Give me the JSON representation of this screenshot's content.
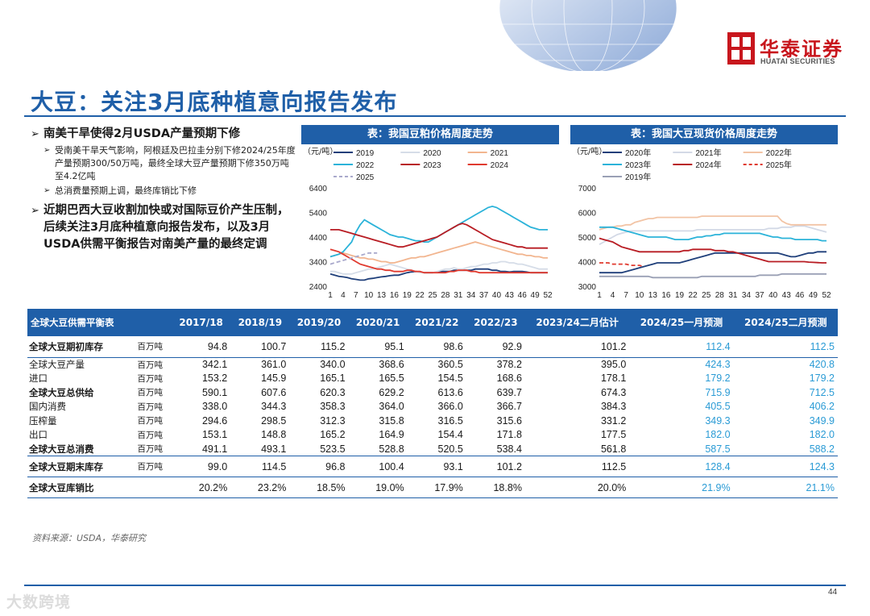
{
  "brand": {
    "name_cn": "华泰证券",
    "name_en": "HUATAI SECURITIES"
  },
  "page": {
    "title": "大豆：关注3月底种植意向报告发布",
    "number": "44",
    "source": "资料来源：USDA，华泰研究",
    "watermark": "大数跨境"
  },
  "colors": {
    "accent": "#1f5fa8",
    "brand_red": "#c8161d",
    "highlight": "#2a9bd5"
  },
  "bullets": {
    "b1": "南美干旱使得2月USDA产量预期下修",
    "b1_s1": "受南美干旱天气影响，阿根廷及巴拉圭分别下修2024/25年度产量预期300/50万吨，最终全球大豆产量预期下修350万吨至4.2亿吨",
    "b1_s2": "总消费量预期上调，最终库销比下修",
    "b2": "近期巴西大豆收割加快或对国际豆价产生压制，后续关注3月底种植意向报告发布，以及3月USDA供需平衡报告对南美产量的最终定调"
  },
  "chart_data": [
    {
      "type": "line",
      "title": "表：我国豆粕价格周度走势",
      "unit_label": "（元/吨）",
      "ylim": [
        2400,
        6400
      ],
      "yticks": [
        2400,
        3400,
        4400,
        5400,
        6400
      ],
      "xticks": [
        "1",
        "4",
        "7",
        "10",
        "13",
        "16",
        "19",
        "22",
        "25",
        "28",
        "31",
        "34",
        "37",
        "40",
        "43",
        "46",
        "49",
        "52"
      ],
      "series": [
        {
          "name": "2019",
          "color": "#1f3f7a",
          "dash": false,
          "values": [
            2900,
            2850,
            2800,
            2780,
            2750,
            2700,
            2680,
            2650,
            2650,
            2700,
            2720,
            2750,
            2780,
            2800,
            2830,
            2850,
            2850,
            2900,
            2950,
            2980,
            3000,
            2980,
            2950,
            2950,
            2950,
            2980,
            3000,
            3000,
            3000,
            3050,
            3050,
            3050,
            3050,
            3050,
            3100,
            3100,
            3100,
            3100,
            3050,
            3050,
            3000,
            3000,
            2980,
            3000,
            3000,
            3000,
            2980,
            2950,
            2950,
            2950,
            2950,
            2950
          ]
        },
        {
          "name": "2020",
          "color": "#d6dde8",
          "dash": false,
          "values": [
            3000,
            3000,
            2950,
            2900,
            2900,
            2900,
            2950,
            3000,
            3050,
            3100,
            3100,
            3150,
            3200,
            3250,
            3300,
            3250,
            3200,
            3150,
            3100,
            3050,
            3000,
            2950,
            2950,
            2950,
            2950,
            3000,
            3050,
            3100,
            3100,
            3150,
            3100,
            3100,
            3150,
            3200,
            3200,
            3250,
            3300,
            3300,
            3350,
            3350,
            3400,
            3400,
            3350,
            3350,
            3300,
            3300,
            3250,
            3200,
            3150,
            3100,
            3100,
            3100
          ]
        },
        {
          "name": "2021",
          "color": "#f2b58f",
          "dash": false,
          "values": [
            3600,
            3650,
            3700,
            3750,
            3700,
            3650,
            3600,
            3550,
            3550,
            3500,
            3500,
            3450,
            3400,
            3400,
            3350,
            3350,
            3400,
            3450,
            3500,
            3550,
            3550,
            3600,
            3600,
            3650,
            3700,
            3750,
            3800,
            3850,
            3900,
            3950,
            4000,
            4050,
            4100,
            4150,
            4200,
            4150,
            4100,
            4050,
            4000,
            3950,
            3900,
            3850,
            3800,
            3750,
            3700,
            3700,
            3650,
            3650,
            3600,
            3600,
            3550,
            3550
          ]
        },
        {
          "name": "2022",
          "color": "#2bb3d9",
          "dash": false,
          "values": [
            3600,
            3650,
            3700,
            3800,
            4000,
            4200,
            4600,
            4900,
            5100,
            5000,
            4900,
            4800,
            4700,
            4600,
            4500,
            4450,
            4400,
            4400,
            4350,
            4300,
            4250,
            4250,
            4200,
            4200,
            4300,
            4400,
            4500,
            4600,
            4700,
            4800,
            4900,
            5000,
            5100,
            5200,
            5300,
            5400,
            5500,
            5600,
            5650,
            5600,
            5500,
            5400,
            5300,
            5200,
            5100,
            5000,
            4900,
            4800,
            4750,
            4700,
            4700,
            4700
          ]
        },
        {
          "name": "2023",
          "color": "#b81c23",
          "dash": false,
          "values": [
            4700,
            4700,
            4700,
            4650,
            4600,
            4550,
            4500,
            4450,
            4400,
            4350,
            4300,
            4250,
            4200,
            4150,
            4100,
            4050,
            4000,
            4000,
            4050,
            4100,
            4150,
            4200,
            4250,
            4300,
            4350,
            4400,
            4500,
            4600,
            4700,
            4800,
            4900,
            4950,
            4900,
            4800,
            4700,
            4600,
            4500,
            4400,
            4300,
            4250,
            4200,
            4150,
            4100,
            4050,
            4000,
            4000,
            3950,
            3950,
            3950,
            3950,
            3950,
            3950
          ]
        },
        {
          "name": "2024",
          "color": "#e03a2f",
          "dash": false,
          "values": [
            3900,
            3850,
            3800,
            3700,
            3600,
            3500,
            3400,
            3300,
            3250,
            3200,
            3150,
            3100,
            3100,
            3050,
            3050,
            3000,
            3000,
            3000,
            3050,
            3050,
            3000,
            3000,
            2950,
            2950,
            2950,
            2950,
            2950,
            2950,
            3000,
            3000,
            3050,
            3050,
            3050,
            3000,
            3000,
            2950,
            2950,
            2950,
            2950,
            2950,
            2950,
            2950,
            2950,
            2950,
            2950,
            2950,
            2950,
            2950,
            2950,
            2950,
            2950,
            2950
          ]
        },
        {
          "name": "2025",
          "color": "#a9a9cc",
          "dash": true,
          "values": [
            3300,
            3350,
            3400,
            3450,
            3500,
            3550,
            3600,
            3650,
            3700,
            3750,
            3750,
            3750
          ]
        }
      ]
    },
    {
      "type": "line",
      "title": "表：我国大豆现货价格周度走势",
      "unit_label": "（元/吨）",
      "ylim": [
        3000,
        7000
      ],
      "yticks": [
        3000,
        4000,
        5000,
        6000,
        7000
      ],
      "xticks": [
        "1",
        "4",
        "7",
        "10",
        "13",
        "16",
        "19",
        "22",
        "25",
        "28",
        "31",
        "34",
        "37",
        "40",
        "43",
        "46",
        "49",
        "52"
      ],
      "series": [
        {
          "name": "2020年",
          "color": "#1f3f7a",
          "dash": false,
          "values": [
            3550,
            3550,
            3550,
            3550,
            3550,
            3550,
            3600,
            3650,
            3700,
            3750,
            3800,
            3850,
            3900,
            3950,
            3950,
            3950,
            3950,
            3950,
            3950,
            4000,
            4050,
            4100,
            4150,
            4200,
            4250,
            4300,
            4350,
            4350,
            4350,
            4350,
            4350,
            4350,
            4350,
            4350,
            4350,
            4350,
            4350,
            4350,
            4350,
            4350,
            4350,
            4300,
            4250,
            4200,
            4200,
            4250,
            4300,
            4350,
            4350,
            4400,
            4400,
            4400
          ]
        },
        {
          "name": "2021年",
          "color": "#d3d9e6",
          "dash": false,
          "values": [
            4700,
            4800,
            4900,
            5000,
            5100,
            5150,
            5200,
            5250,
            5250,
            5250,
            5250,
            5250,
            5250,
            5250,
            5250,
            5250,
            5250,
            5250,
            5250,
            5250,
            5250,
            5250,
            5300,
            5300,
            5300,
            5300,
            5300,
            5300,
            5300,
            5300,
            5300,
            5300,
            5300,
            5300,
            5300,
            5300,
            5300,
            5300,
            5350,
            5350,
            5350,
            5400,
            5400,
            5400,
            5450,
            5450,
            5450,
            5400,
            5350,
            5300,
            5250,
            5200
          ]
        },
        {
          "name": "2022年",
          "color": "#f2c4a5",
          "dash": false,
          "values": [
            5300,
            5350,
            5400,
            5400,
            5450,
            5450,
            5500,
            5500,
            5600,
            5650,
            5700,
            5750,
            5750,
            5800,
            5800,
            5800,
            5800,
            5800,
            5800,
            5800,
            5800,
            5800,
            5800,
            5850,
            5850,
            5850,
            5850,
            5850,
            5850,
            5850,
            5850,
            5850,
            5850,
            5850,
            5850,
            5850,
            5850,
            5850,
            5850,
            5850,
            5850,
            5650,
            5550,
            5500,
            5500,
            5500,
            5500,
            5500,
            5500,
            5500,
            5500,
            5500
          ]
        },
        {
          "name": "2023年",
          "color": "#2bb3d9",
          "dash": false,
          "values": [
            5400,
            5400,
            5400,
            5400,
            5350,
            5300,
            5250,
            5200,
            5150,
            5100,
            5050,
            5000,
            5000,
            5000,
            5000,
            5000,
            4950,
            4900,
            4900,
            4900,
            4900,
            4950,
            5000,
            5000,
            5050,
            5050,
            5100,
            5100,
            5150,
            5150,
            5150,
            5150,
            5150,
            5150,
            5150,
            5150,
            5150,
            5100,
            5050,
            5000,
            5000,
            4950,
            4950,
            4950,
            4900,
            4900,
            4900,
            4900,
            4900,
            4900,
            4850,
            4850
          ]
        },
        {
          "name": "2024年",
          "color": "#b81c23",
          "dash": false,
          "values": [
            4950,
            4900,
            4850,
            4800,
            4700,
            4600,
            4550,
            4500,
            4450,
            4400,
            4400,
            4400,
            4400,
            4400,
            4400,
            4400,
            4400,
            4400,
            4400,
            4450,
            4450,
            4500,
            4500,
            4500,
            4500,
            4500,
            4450,
            4450,
            4450,
            4400,
            4400,
            4350,
            4300,
            4250,
            4200,
            4150,
            4100,
            4050,
            4000,
            4000,
            4000,
            4000,
            4000,
            4000,
            4000,
            4000,
            4000,
            3980,
            3970,
            3960,
            3950,
            3950
          ]
        },
        {
          "name": "2025年",
          "color": "#e03a2f",
          "dash": true,
          "values": [
            3950,
            3950,
            3950,
            3900,
            3900,
            3900,
            3900,
            3850,
            3850,
            3850,
            3800
          ]
        },
        {
          "name": "2019年",
          "color": "#9aa0b5",
          "dash": false,
          "values": [
            3400,
            3400,
            3400,
            3400,
            3400,
            3400,
            3400,
            3400,
            3400,
            3400,
            3400,
            3400,
            3350,
            3350,
            3350,
            3350,
            3350,
            3350,
            3350,
            3350,
            3350,
            3350,
            3350,
            3400,
            3400,
            3400,
            3400,
            3400,
            3400,
            3400,
            3400,
            3400,
            3400,
            3400,
            3400,
            3400,
            3450,
            3450,
            3450,
            3450,
            3450,
            3500,
            3500,
            3500,
            3500,
            3500,
            3500,
            3500,
            3500,
            3500,
            3500,
            3500
          ]
        }
      ]
    }
  ],
  "table": {
    "title": "全球大豆供需平衡表",
    "headers": [
      "2017/18",
      "2018/19",
      "2019/20",
      "2020/21",
      "2021/22",
      "2022/23",
      "2023/24二月估计",
      "2024/25一月预测",
      "2024/25二月预测"
    ],
    "rows": [
      {
        "label": "全球大豆期初库存",
        "unit": "百万吨",
        "bold": true,
        "cls": "tall",
        "values": [
          "94.8",
          "100.7",
          "115.2",
          "95.1",
          "98.6",
          "92.9",
          "101.2",
          "112.4",
          "112.5"
        ]
      },
      {
        "label": "全球大豆产量",
        "unit": "百万吨",
        "bold": false,
        "cls": "sep",
        "values": [
          "342.1",
          "361.0",
          "340.0",
          "368.6",
          "360.5",
          "378.2",
          "395.0",
          "424.3",
          "420.8"
        ]
      },
      {
        "label": "进口",
        "unit": "百万吨",
        "bold": false,
        "cls": "",
        "values": [
          "153.2",
          "145.9",
          "165.1",
          "165.5",
          "154.5",
          "168.6",
          "178.1",
          "179.2",
          "179.2"
        ]
      },
      {
        "label": "全球大豆总供给",
        "unit": "百万吨",
        "bold": true,
        "cls": "",
        "values": [
          "590.1",
          "607.6",
          "620.3",
          "629.2",
          "613.6",
          "639.7",
          "674.3",
          "715.9",
          "712.5"
        ]
      },
      {
        "label": "国内消费",
        "unit": "百万吨",
        "bold": false,
        "cls": "",
        "values": [
          "338.0",
          "344.3",
          "358.3",
          "364.0",
          "366.0",
          "366.7",
          "384.3",
          "405.5",
          "406.2"
        ]
      },
      {
        "label": "压榨量",
        "unit": "百万吨",
        "bold": false,
        "cls": "",
        "values": [
          "294.6",
          "298.5",
          "312.3",
          "315.8",
          "316.5",
          "315.6",
          "331.2",
          "349.3",
          "349.9"
        ]
      },
      {
        "label": "出口",
        "unit": "百万吨",
        "bold": false,
        "cls": "",
        "values": [
          "153.1",
          "148.8",
          "165.2",
          "164.9",
          "154.4",
          "171.8",
          "177.5",
          "182.0",
          "182.0"
        ]
      },
      {
        "label": "全球大豆总消费",
        "unit": "百万吨",
        "bold": true,
        "cls": "",
        "values": [
          "491.1",
          "493.1",
          "523.5",
          "528.8",
          "520.5",
          "538.4",
          "561.8",
          "587.5",
          "588.2"
        ]
      },
      {
        "label": "全球大豆期末库存",
        "unit": "百万吨",
        "bold": true,
        "cls": "tall sep",
        "values": [
          "99.0",
          "114.5",
          "96.8",
          "100.4",
          "93.1",
          "101.2",
          "112.5",
          "128.4",
          "124.3"
        ]
      },
      {
        "label": "全球大豆库销比",
        "unit": "",
        "bold": true,
        "cls": "tall sep last",
        "values": [
          "20.2%",
          "23.2%",
          "18.5%",
          "19.0%",
          "17.9%",
          "18.8%",
          "20.0%",
          "21.9%",
          "21.1%"
        ]
      }
    ]
  }
}
